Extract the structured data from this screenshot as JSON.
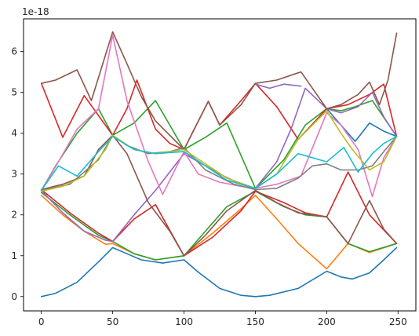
{
  "chart_data": {
    "type": "line",
    "title": "",
    "xlabel": "",
    "ylabel": "",
    "y_offset_text": "1e-18",
    "xlim": [
      -12.5,
      262.5
    ],
    "ylim": [
      -0.35,
      6.8
    ],
    "xticks": [
      0,
      50,
      100,
      150,
      200,
      250
    ],
    "yticks": [
      0,
      1,
      2,
      3,
      4,
      5,
      6
    ],
    "grid": false,
    "legend": "none",
    "series": [
      {
        "color": "#1f77b4",
        "x": [
          0,
          10,
          25,
          40,
          50,
          60,
          70,
          85,
          100,
          110,
          125,
          140,
          150,
          160,
          180,
          200,
          210,
          218,
          230,
          240,
          249
        ],
        "y": [
          0.0,
          0.08,
          0.35,
          0.85,
          1.2,
          1.05,
          0.9,
          0.82,
          0.9,
          0.6,
          0.2,
          0.03,
          0.0,
          0.03,
          0.2,
          0.62,
          0.48,
          0.43,
          0.58,
          0.9,
          1.2
        ]
      },
      {
        "color": "#1f77b4",
        "x": [
          200,
          220,
          230,
          240,
          249
        ],
        "y": [
          4.6,
          3.8,
          4.25,
          4.05,
          3.92
        ]
      },
      {
        "color": "#ff7f0e",
        "x": [
          0,
          15,
          30,
          45,
          50,
          65,
          80,
          100,
          120,
          140,
          150,
          165,
          180,
          200,
          215,
          230,
          249
        ],
        "y": [
          2.48,
          2.0,
          1.6,
          1.28,
          1.3,
          1.05,
          0.9,
          1.0,
          1.55,
          2.15,
          2.48,
          1.9,
          1.3,
          0.68,
          1.3,
          1.08,
          1.3
        ]
      },
      {
        "color": "#2ca02c",
        "x": [
          0,
          10,
          25,
          40,
          50,
          65,
          80,
          100,
          115,
          130,
          150,
          170,
          185,
          200,
          210,
          220,
          232,
          249
        ],
        "y": [
          2.6,
          3.2,
          4.0,
          4.6,
          3.95,
          4.25,
          4.8,
          3.6,
          3.9,
          4.25,
          2.65,
          3.35,
          4.2,
          4.6,
          4.55,
          4.65,
          4.8,
          3.92
        ]
      },
      {
        "color": "#2ca02c",
        "x": [
          0,
          20,
          40,
          50,
          65,
          80,
          100,
          115,
          130,
          150,
          170,
          185,
          200,
          215,
          230,
          249
        ],
        "y": [
          2.55,
          2.0,
          1.5,
          1.35,
          1.05,
          0.9,
          1.0,
          1.6,
          2.2,
          2.58,
          2.2,
          2.0,
          1.95,
          1.3,
          1.1,
          1.3
        ]
      },
      {
        "color": "#d62728",
        "x": [
          0,
          15,
          30,
          50,
          60,
          67,
          80,
          90,
          100,
          117,
          125,
          140,
          150,
          165,
          180,
          200,
          215,
          230,
          240,
          249
        ],
        "y": [
          5.22,
          3.9,
          4.92,
          3.95,
          4.6,
          5.3,
          4.1,
          3.75,
          3.6,
          4.78,
          4.2,
          4.8,
          5.22,
          4.65,
          3.85,
          4.6,
          4.7,
          4.95,
          5.2,
          3.92
        ]
      },
      {
        "color": "#d62728",
        "x": [
          0,
          20,
          40,
          50,
          65,
          80,
          100,
          120,
          140,
          150,
          170,
          185,
          200,
          215,
          230,
          249
        ],
        "y": [
          2.62,
          2.05,
          1.55,
          1.35,
          1.9,
          2.25,
          1.0,
          1.45,
          2.1,
          2.58,
          2.3,
          2.05,
          1.95,
          3.05,
          2.0,
          1.3
        ]
      },
      {
        "color": "#9467bd",
        "x": [
          0,
          15,
          30,
          45,
          50,
          65,
          80,
          100,
          110,
          125,
          140,
          150,
          165,
          175,
          185,
          200,
          210,
          222,
          232,
          240,
          249
        ],
        "y": [
          2.6,
          2.05,
          1.6,
          1.38,
          1.35,
          2.0,
          2.6,
          3.5,
          3.3,
          3.0,
          2.75,
          2.65,
          3.3,
          4.1,
          5.1,
          4.6,
          4.5,
          4.65,
          5.0,
          4.4,
          3.92
        ]
      },
      {
        "color": "#9467bd",
        "x": [
          150,
          160,
          170,
          182
        ],
        "y": [
          5.2,
          5.1,
          5.2,
          5.15
        ]
      },
      {
        "color": "#8c564b",
        "x": [
          0,
          10,
          25,
          35,
          50,
          60,
          70,
          80,
          100,
          117,
          125,
          140,
          150,
          165,
          182,
          200,
          210,
          222,
          230,
          237,
          243,
          249
        ],
        "y": [
          5.22,
          5.3,
          5.55,
          4.8,
          6.48,
          5.7,
          4.9,
          4.3,
          3.6,
          4.78,
          4.2,
          4.7,
          5.22,
          5.3,
          5.5,
          4.6,
          4.7,
          4.95,
          5.25,
          4.7,
          5.3,
          6.45
        ]
      },
      {
        "color": "#8c564b",
        "x": [
          0,
          15,
          30,
          40,
          50,
          60,
          75,
          90,
          100,
          115,
          130,
          150,
          165,
          180,
          200,
          215,
          230,
          240,
          249
        ],
        "y": [
          2.62,
          2.75,
          2.95,
          3.6,
          3.95,
          3.5,
          2.3,
          1.6,
          1.0,
          1.5,
          2.1,
          2.6,
          2.3,
          2.05,
          1.95,
          1.3,
          2.35,
          1.65,
          1.3
        ]
      },
      {
        "color": "#e377c2",
        "x": [
          0,
          12,
          25,
          40,
          50,
          60,
          75,
          85,
          100,
          110,
          125,
          140,
          150,
          165,
          182,
          200,
          210,
          222,
          232,
          240,
          249
        ],
        "y": [
          2.6,
          3.3,
          4.1,
          4.6,
          6.4,
          4.8,
          3.3,
          2.5,
          3.55,
          3.0,
          2.8,
          2.7,
          2.65,
          2.75,
          2.95,
          4.5,
          4.2,
          3.6,
          2.45,
          3.4,
          3.92
        ]
      },
      {
        "color": "#7f7f7f",
        "x": [
          0,
          20,
          40,
          50,
          60,
          75,
          90,
          100,
          115,
          135,
          150,
          165,
          180,
          190,
          200,
          210,
          222,
          232,
          240,
          249
        ],
        "y": [
          2.6,
          2.75,
          3.35,
          3.95,
          3.7,
          3.5,
          3.55,
          3.65,
          3.1,
          2.75,
          2.62,
          2.65,
          2.9,
          3.2,
          3.25,
          3.1,
          3.1,
          3.2,
          3.55,
          3.92
        ]
      },
      {
        "color": "#bcbd22",
        "x": [
          0,
          15,
          30,
          45,
          50,
          65,
          80,
          100,
          115,
          130,
          150,
          165,
          180,
          200,
          210,
          218,
          230,
          240,
          249
        ],
        "y": [
          2.58,
          2.7,
          2.95,
          3.6,
          3.95,
          3.6,
          3.5,
          3.6,
          3.25,
          2.9,
          2.65,
          3.0,
          3.85,
          4.55,
          4.0,
          3.6,
          3.1,
          3.3,
          3.92
        ]
      },
      {
        "color": "#17becf",
        "x": [
          0,
          12,
          25,
          40,
          50,
          65,
          80,
          100,
          115,
          130,
          150,
          165,
          180,
          200,
          212,
          222,
          232,
          240,
          249
        ],
        "y": [
          2.6,
          3.2,
          2.95,
          3.55,
          3.92,
          3.6,
          3.5,
          3.55,
          3.2,
          2.85,
          2.65,
          3.0,
          3.5,
          3.3,
          3.65,
          3.05,
          3.5,
          3.75,
          3.92
        ]
      }
    ]
  }
}
